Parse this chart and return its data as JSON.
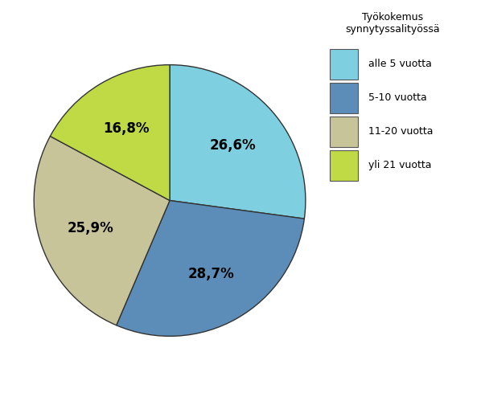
{
  "slices": [
    26.6,
    28.7,
    25.9,
    16.8
  ],
  "labels": [
    "26,6%",
    "28,7%",
    "25,9%",
    "16,8%"
  ],
  "colors": [
    "#7ECFE0",
    "#5B8DB8",
    "#C8C49A",
    "#BFDA45"
  ],
  "legend_title": "Työkokemus\nsynnytyssalityössä",
  "legend_labels": [
    "alle 5 vuotta",
    "5-10 vuotta",
    "11-20 vuotta",
    "yli 21 vuotta"
  ],
  "startangle": 90,
  "figsize": [
    6.03,
    4.99
  ],
  "dpi": 100,
  "label_fontsize": 12,
  "legend_fontsize": 9,
  "legend_title_fontsize": 9
}
